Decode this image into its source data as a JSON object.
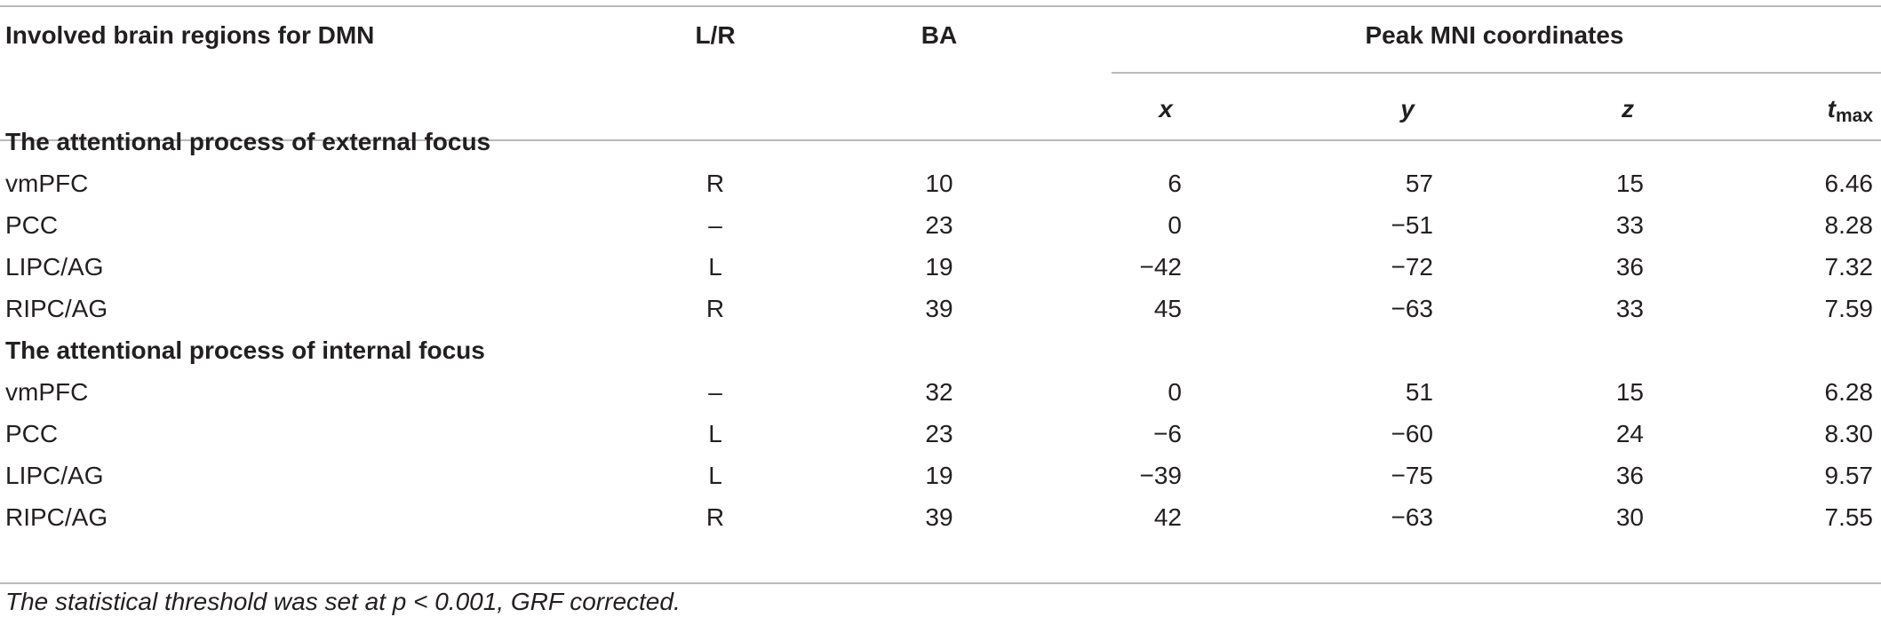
{
  "table": {
    "headers": {
      "region": "Involved brain regions for DMN",
      "lr": "L/R",
      "ba": "BA",
      "peak_group": "Peak MNI coordinates",
      "x": "x",
      "y": "y",
      "z": "z",
      "t_main": "t",
      "t_sub": "max"
    },
    "sections": [
      {
        "title": "The attentional process of external focus",
        "rows": [
          {
            "region": "vmPFC",
            "lr": "R",
            "ba": "10",
            "x": "6",
            "y": "57",
            "z": "15",
            "t": "6.46"
          },
          {
            "region": "PCC",
            "lr": "–",
            "ba": "23",
            "x": "0",
            "y": "−51",
            "z": "33",
            "t": "8.28"
          },
          {
            "region": "LIPC/AG",
            "lr": "L",
            "ba": "19",
            "x": "−42",
            "y": "−72",
            "z": "36",
            "t": "7.32"
          },
          {
            "region": "RIPC/AG",
            "lr": "R",
            "ba": "39",
            "x": "45",
            "y": "−63",
            "z": "33",
            "t": "7.59"
          }
        ]
      },
      {
        "title": "The attentional process of internal focus",
        "rows": [
          {
            "region": "vmPFC",
            "lr": "–",
            "ba": "32",
            "x": "0",
            "y": "51",
            "z": "15",
            "t": "6.28"
          },
          {
            "region": "PCC",
            "lr": "L",
            "ba": "23",
            "x": "−6",
            "y": "−60",
            "z": "24",
            "t": "8.30"
          },
          {
            "region": "LIPC/AG",
            "lr": "L",
            "ba": "19",
            "x": "−39",
            "y": "−75",
            "z": "36",
            "t": "9.57"
          },
          {
            "region": "RIPC/AG",
            "lr": "R",
            "ba": "39",
            "x": "42",
            "y": "−63",
            "z": "30",
            "t": "7.55"
          }
        ]
      }
    ],
    "footnote": "The statistical threshold was set at p < 0.001, GRF corrected."
  }
}
